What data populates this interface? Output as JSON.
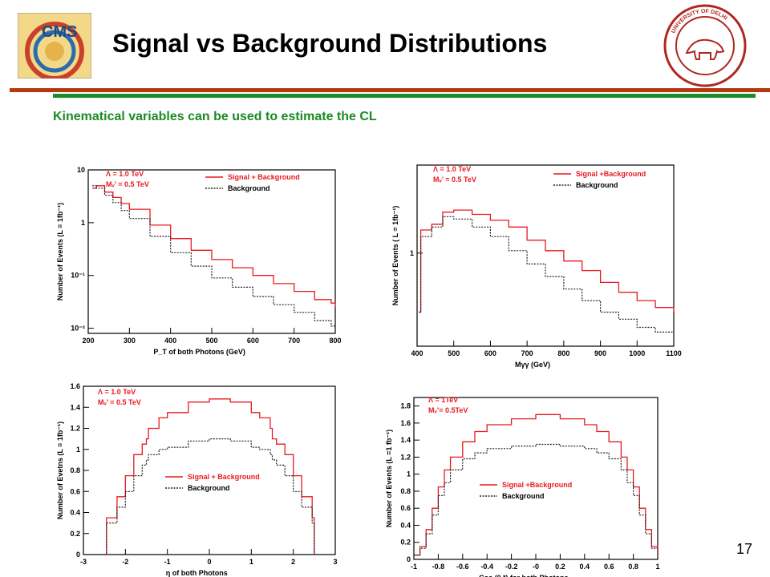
{
  "slide": {
    "title": "Signal vs Background Distributions",
    "subtitle": "Kinematical variables can be used to estimate the CL",
    "page_number": "17",
    "logo_left_text": "CMS",
    "logo_right_text": "UNIVERSITY OF DELHI"
  },
  "colors": {
    "signal": "#e8191f",
    "background": "#222222",
    "title": "#000000",
    "subtitle": "#1b8a24",
    "rule_red": "#b33a10",
    "rule_green": "#1c8d2b"
  },
  "chart_data": [
    {
      "type": "line",
      "xlabel": "P_T of both Photons (GeV)",
      "ylabel": "Number of Events (L = 1fb⁻¹)",
      "yscale": "log",
      "xlim": [
        200,
        800
      ],
      "ylim": [
        0.008,
        10
      ],
      "xticks": [
        200,
        300,
        400,
        500,
        600,
        700,
        800
      ],
      "yticks": [
        0.01,
        0.1,
        1,
        10
      ],
      "ytick_labels": [
        "10⁻²",
        "10⁻¹",
        "1",
        "10"
      ],
      "annotations": [
        "Λ = 1.0 TeV",
        "Mᵥ’ = 0.5 TeV"
      ],
      "legend_position": "top-right",
      "series": [
        {
          "name": "Signal + Background",
          "color": "#e8191f",
          "style": "solid",
          "x": [
            210,
            220,
            240,
            260,
            280,
            300,
            350,
            400,
            450,
            500,
            550,
            600,
            650,
            700,
            750,
            790,
            800
          ],
          "y": [
            4.5,
            5.0,
            3.8,
            3.0,
            2.3,
            1.8,
            0.9,
            0.5,
            0.3,
            0.2,
            0.14,
            0.1,
            0.07,
            0.05,
            0.035,
            0.03,
            0.025
          ]
        },
        {
          "name": "Background",
          "color": "#222222",
          "style": "dotted",
          "x": [
            210,
            220,
            240,
            260,
            280,
            300,
            350,
            400,
            450,
            500,
            550,
            600,
            650,
            700,
            750,
            790,
            800
          ],
          "y": [
            5.0,
            4.5,
            3.3,
            2.4,
            1.7,
            1.2,
            0.55,
            0.27,
            0.15,
            0.09,
            0.06,
            0.04,
            0.028,
            0.02,
            0.014,
            0.011,
            0.009
          ]
        }
      ]
    },
    {
      "type": "line",
      "xlabel": "Mγγ (GeV)",
      "ylabel": "Number of Events ( L = 1fb⁻¹)",
      "yscale": "log",
      "xlim": [
        400,
        1100
      ],
      "ylim": [
        0.15,
        6
      ],
      "xticks": [
        400,
        500,
        600,
        700,
        800,
        900,
        1000,
        1100
      ],
      "yticks": [
        1
      ],
      "ytick_labels": [
        "1"
      ],
      "annotations": [
        "Λ = 1.0 TeV",
        "Mᵥ’ = 0.5 TeV"
      ],
      "legend_position": "top-right",
      "series": [
        {
          "name": "Signal +Background",
          "color": "#e8191f",
          "style": "solid",
          "x": [
            405,
            410,
            440,
            470,
            500,
            550,
            600,
            650,
            700,
            750,
            800,
            850,
            900,
            950,
            1000,
            1050,
            1100
          ],
          "y": [
            0.3,
            1.6,
            1.8,
            2.3,
            2.4,
            2.2,
            1.95,
            1.7,
            1.3,
            1.05,
            0.85,
            0.7,
            0.55,
            0.45,
            0.38,
            0.33,
            0.3
          ]
        },
        {
          "name": "Background",
          "color": "#222222",
          "style": "dotted",
          "x": [
            405,
            410,
            440,
            470,
            500,
            550,
            600,
            650,
            700,
            750,
            800,
            850,
            900,
            950,
            1000,
            1050,
            1100
          ],
          "y": [
            0.3,
            1.4,
            1.7,
            2.1,
            2.0,
            1.7,
            1.4,
            1.05,
            0.8,
            0.62,
            0.48,
            0.38,
            0.3,
            0.26,
            0.22,
            0.2,
            0.18
          ]
        }
      ]
    },
    {
      "type": "line",
      "xlabel": "η of both Photons",
      "ylabel": "Number of Evetns (L = 1fb⁻¹)",
      "xlim": [
        -3,
        3
      ],
      "ylim": [
        0,
        1.6
      ],
      "xticks": [
        -3,
        -2,
        -1,
        0,
        1,
        2,
        3
      ],
      "yticks": [
        0,
        0.2,
        0.4,
        0.6,
        0.8,
        1,
        1.2,
        1.4,
        1.6
      ],
      "annotations": [
        "Λ = 1.0 TeV",
        "Mᵥ’ = 0.5 TeV"
      ],
      "legend_position": "center",
      "series": [
        {
          "name": "Signal + Background",
          "color": "#e8191f",
          "style": "solid",
          "x": [
            -2.5,
            -2.45,
            -2.2,
            -2.0,
            -1.8,
            -1.6,
            -1.5,
            -1.45,
            -1.2,
            -1.0,
            -0.5,
            0,
            0.5,
            1.0,
            1.2,
            1.45,
            1.5,
            1.6,
            1.8,
            2.0,
            2.2,
            2.45,
            2.5
          ],
          "y": [
            0,
            0.35,
            0.55,
            0.75,
            0.95,
            1.05,
            1.1,
            1.2,
            1.3,
            1.35,
            1.45,
            1.48,
            1.45,
            1.35,
            1.3,
            1.2,
            1.1,
            1.05,
            0.95,
            0.75,
            0.55,
            0.35,
            0
          ]
        },
        {
          "name": "Background",
          "color": "#222222",
          "style": "dotted",
          "x": [
            -2.5,
            -2.45,
            -2.2,
            -2.0,
            -1.8,
            -1.6,
            -1.5,
            -1.45,
            -1.2,
            -1.0,
            -0.5,
            0,
            0.5,
            1.0,
            1.2,
            1.45,
            1.5,
            1.6,
            1.8,
            2.0,
            2.2,
            2.45,
            2.5
          ],
          "y": [
            0,
            0.3,
            0.45,
            0.6,
            0.75,
            0.85,
            0.9,
            0.95,
            1.0,
            1.02,
            1.08,
            1.1,
            1.08,
            1.02,
            1.0,
            0.95,
            0.9,
            0.85,
            0.75,
            0.6,
            0.45,
            0.3,
            0
          ]
        }
      ]
    },
    {
      "type": "line",
      "xlabel": "Cos (θ *) for both Photons",
      "ylabel": "Number of Events (L =1 fb⁻¹)",
      "xlim": [
        -1,
        1
      ],
      "ylim": [
        0,
        1.9
      ],
      "xticks": [
        -1,
        -0.8,
        -0.6,
        -0.4,
        -0.2,
        0,
        0.2,
        0.4,
        0.6,
        0.8,
        1
      ],
      "xtick_labels": [
        "-1",
        "-0.8",
        "-0.6",
        "-0.4",
        "-0.2",
        "-0",
        "0.2",
        "0.4",
        "0.6",
        "0.8",
        "1"
      ],
      "yticks": [
        0,
        0.2,
        0.4,
        0.6,
        0.8,
        1,
        1.2,
        1.4,
        1.6,
        1.8
      ],
      "annotations": [
        "Λ = 1TeV",
        "Mᵥ’= 0.5TeV"
      ],
      "legend_position": "bottom-center",
      "series": [
        {
          "name": "Signal +Background",
          "color": "#e8191f",
          "style": "solid",
          "x": [
            -1.0,
            -0.95,
            -0.9,
            -0.85,
            -0.8,
            -0.75,
            -0.7,
            -0.6,
            -0.5,
            -0.4,
            -0.2,
            0,
            0.2,
            0.4,
            0.5,
            0.6,
            0.7,
            0.75,
            0.8,
            0.85,
            0.9,
            0.95,
            1.0
          ],
          "y": [
            0.05,
            0.15,
            0.35,
            0.6,
            0.85,
            1.05,
            1.2,
            1.38,
            1.5,
            1.58,
            1.65,
            1.7,
            1.65,
            1.58,
            1.5,
            1.38,
            1.2,
            1.05,
            0.85,
            0.6,
            0.35,
            0.15,
            0.05
          ]
        },
        {
          "name": "Background",
          "color": "#222222",
          "style": "dotted",
          "x": [
            -1.0,
            -0.95,
            -0.9,
            -0.85,
            -0.8,
            -0.75,
            -0.7,
            -0.6,
            -0.5,
            -0.4,
            -0.2,
            0,
            0.2,
            0.4,
            0.5,
            0.6,
            0.7,
            0.75,
            0.8,
            0.85,
            0.9,
            0.95,
            1.0
          ],
          "y": [
            0.05,
            0.13,
            0.3,
            0.52,
            0.75,
            0.9,
            1.05,
            1.18,
            1.25,
            1.3,
            1.33,
            1.35,
            1.33,
            1.3,
            1.25,
            1.18,
            1.05,
            0.9,
            0.75,
            0.52,
            0.3,
            0.13,
            0.05
          ]
        }
      ]
    }
  ]
}
